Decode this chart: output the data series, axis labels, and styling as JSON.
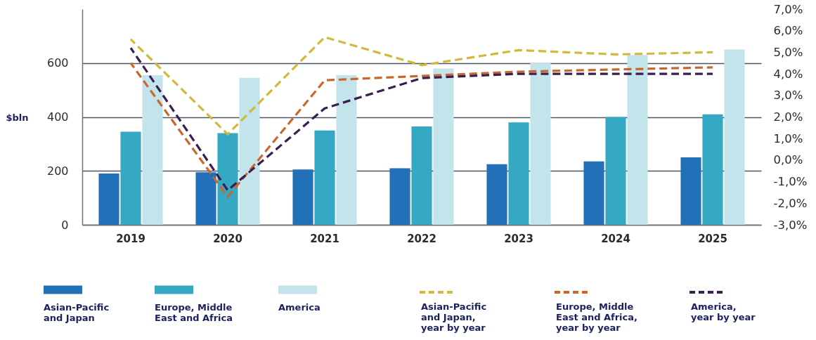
{
  "chart_data": {
    "type": "bar",
    "ylabel": "$bln",
    "categories": [
      "2019",
      "2020",
      "2021",
      "2022",
      "2023",
      "2024",
      "2025"
    ],
    "series": [
      {
        "name": "Asian-Pacific and Japan",
        "color": "#2271b8",
        "values": [
          190,
          195,
          205,
          210,
          225,
          235,
          250
        ]
      },
      {
        "name": "Europe, Middle East and Africa",
        "color": "#35a8c4",
        "values": [
          345,
          340,
          350,
          365,
          380,
          400,
          410
        ]
      },
      {
        "name": "America",
        "color": "#c4e4ec",
        "values": [
          555,
          545,
          555,
          580,
          600,
          630,
          650
        ]
      },
      {
        "name": "Asian-Pacific and Japan, year by year",
        "type": "line",
        "axis": "y2",
        "line_style": "dashed",
        "color": "#d4b83c",
        "values": [
          5.6,
          1.2,
          5.7,
          4.4,
          5.1,
          4.9,
          5.0
        ]
      },
      {
        "name": "Europe, Middle East and Africa, year by year",
        "type": "line",
        "axis": "y2",
        "line_style": "dashed",
        "color": "#c8682b",
        "values": [
          4.5,
          -1.7,
          3.7,
          3.9,
          4.1,
          4.2,
          4.3
        ]
      },
      {
        "name": "America, year by year",
        "type": "line",
        "axis": "y2",
        "line_style": "dashed",
        "color": "#3b1d4f",
        "values": [
          5.2,
          -1.4,
          2.4,
          3.8,
          4.0,
          4.0,
          4.0
        ]
      }
    ],
    "ylim": [
      0,
      800
    ],
    "yticks": [
      0,
      200,
      400,
      600
    ],
    "y2lim": [
      -3,
      7
    ],
    "y2ticks": [
      {
        "value": 7,
        "label": "7,0%"
      },
      {
        "value": 6,
        "label": "6,0%"
      },
      {
        "value": 5,
        "label": "5,0%"
      },
      {
        "value": 4,
        "label": "4,0%"
      },
      {
        "value": 3,
        "label": "3,0%"
      },
      {
        "value": 2,
        "label": "2,0%"
      },
      {
        "value": 1,
        "label": "1,0%"
      },
      {
        "value": 0,
        "label": "0,0%"
      },
      {
        "value": -1,
        "label": "-1,0%"
      },
      {
        "value": -2,
        "label": "-2,0%"
      },
      {
        "value": -3,
        "label": "-3,0%"
      }
    ],
    "grid": "y",
    "legend": "bottom"
  }
}
